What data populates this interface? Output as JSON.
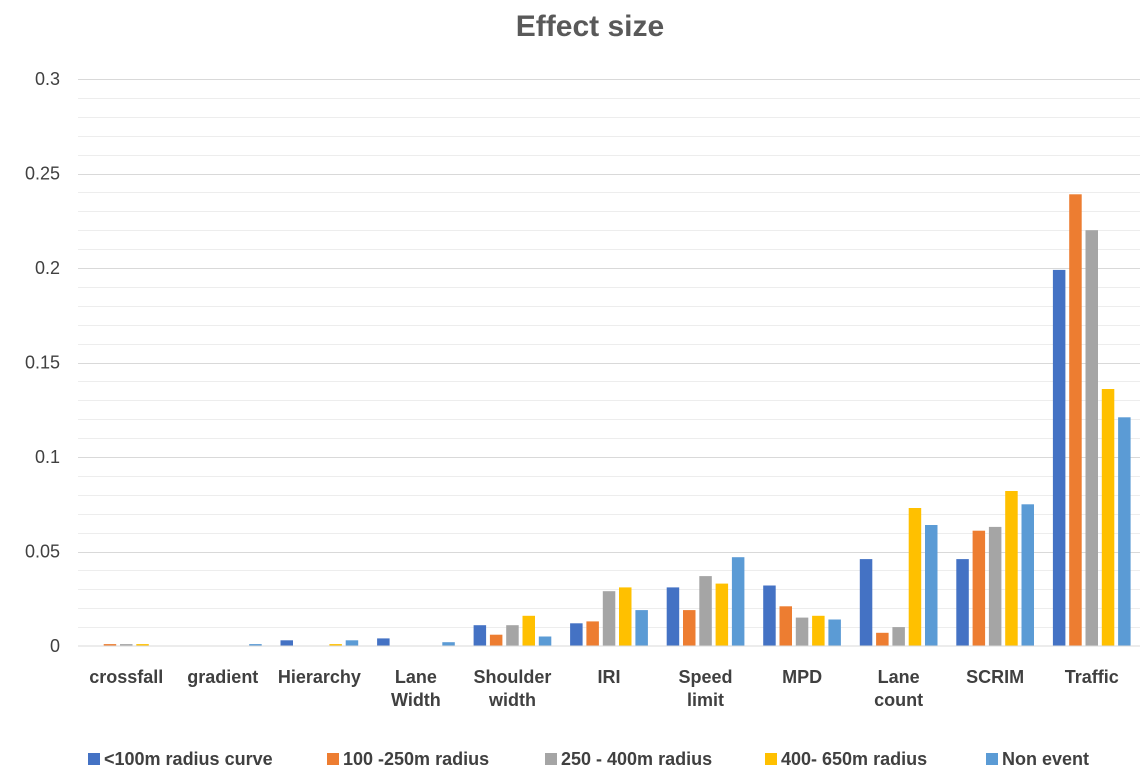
{
  "chart_data": {
    "type": "bar",
    "title": "Effect size",
    "xlabel": "",
    "ylabel": "",
    "ylim": [
      0,
      0.3
    ],
    "yticks": [
      "0",
      "0.05",
      "0.1",
      "0.15",
      "0.2",
      "0.25",
      "0.3"
    ],
    "ytick_values": [
      0,
      0.05,
      0.1,
      0.15,
      0.2,
      0.25,
      0.3
    ],
    "grid": true,
    "legend_position": "bottom",
    "categories": [
      [
        "crossfall"
      ],
      [
        "gradient"
      ],
      [
        "Hierarchy"
      ],
      [
        "Lane",
        "Width"
      ],
      [
        "Shoulder",
        "width"
      ],
      [
        "IRI"
      ],
      [
        "Speed",
        "limit"
      ],
      [
        "MPD"
      ],
      [
        "Lane",
        "count"
      ],
      [
        "SCRIM"
      ],
      [
        "Traffic"
      ]
    ],
    "series": [
      {
        "name": "<100m radius curve",
        "color": "#4472c4",
        "values": [
          0.0,
          0.0,
          0.003,
          0.004,
          0.011,
          0.012,
          0.031,
          0.032,
          0.046,
          0.046,
          0.199
        ]
      },
      {
        "name": "100 -250m radius",
        "color": "#ed7d31",
        "values": [
          0.001,
          0.0,
          0.0,
          0.0,
          0.006,
          0.013,
          0.019,
          0.021,
          0.007,
          0.061,
          0.239
        ]
      },
      {
        "name": "250 - 400m radius",
        "color": "#a5a5a5",
        "values": [
          0.001,
          0.0,
          0.0,
          0.0,
          0.011,
          0.029,
          0.037,
          0.015,
          0.01,
          0.063,
          0.22
        ]
      },
      {
        "name": "400- 650m radius",
        "color": "#ffc000",
        "values": [
          0.001,
          0.0,
          0.001,
          0.0,
          0.016,
          0.031,
          0.033,
          0.016,
          0.073,
          0.082,
          0.136
        ]
      },
      {
        "name": "Non event",
        "color": "#5b9bd5",
        "values": [
          0.0,
          0.001,
          0.003,
          0.002,
          0.005,
          0.019,
          0.047,
          0.014,
          0.064,
          0.075,
          0.121
        ]
      }
    ]
  }
}
